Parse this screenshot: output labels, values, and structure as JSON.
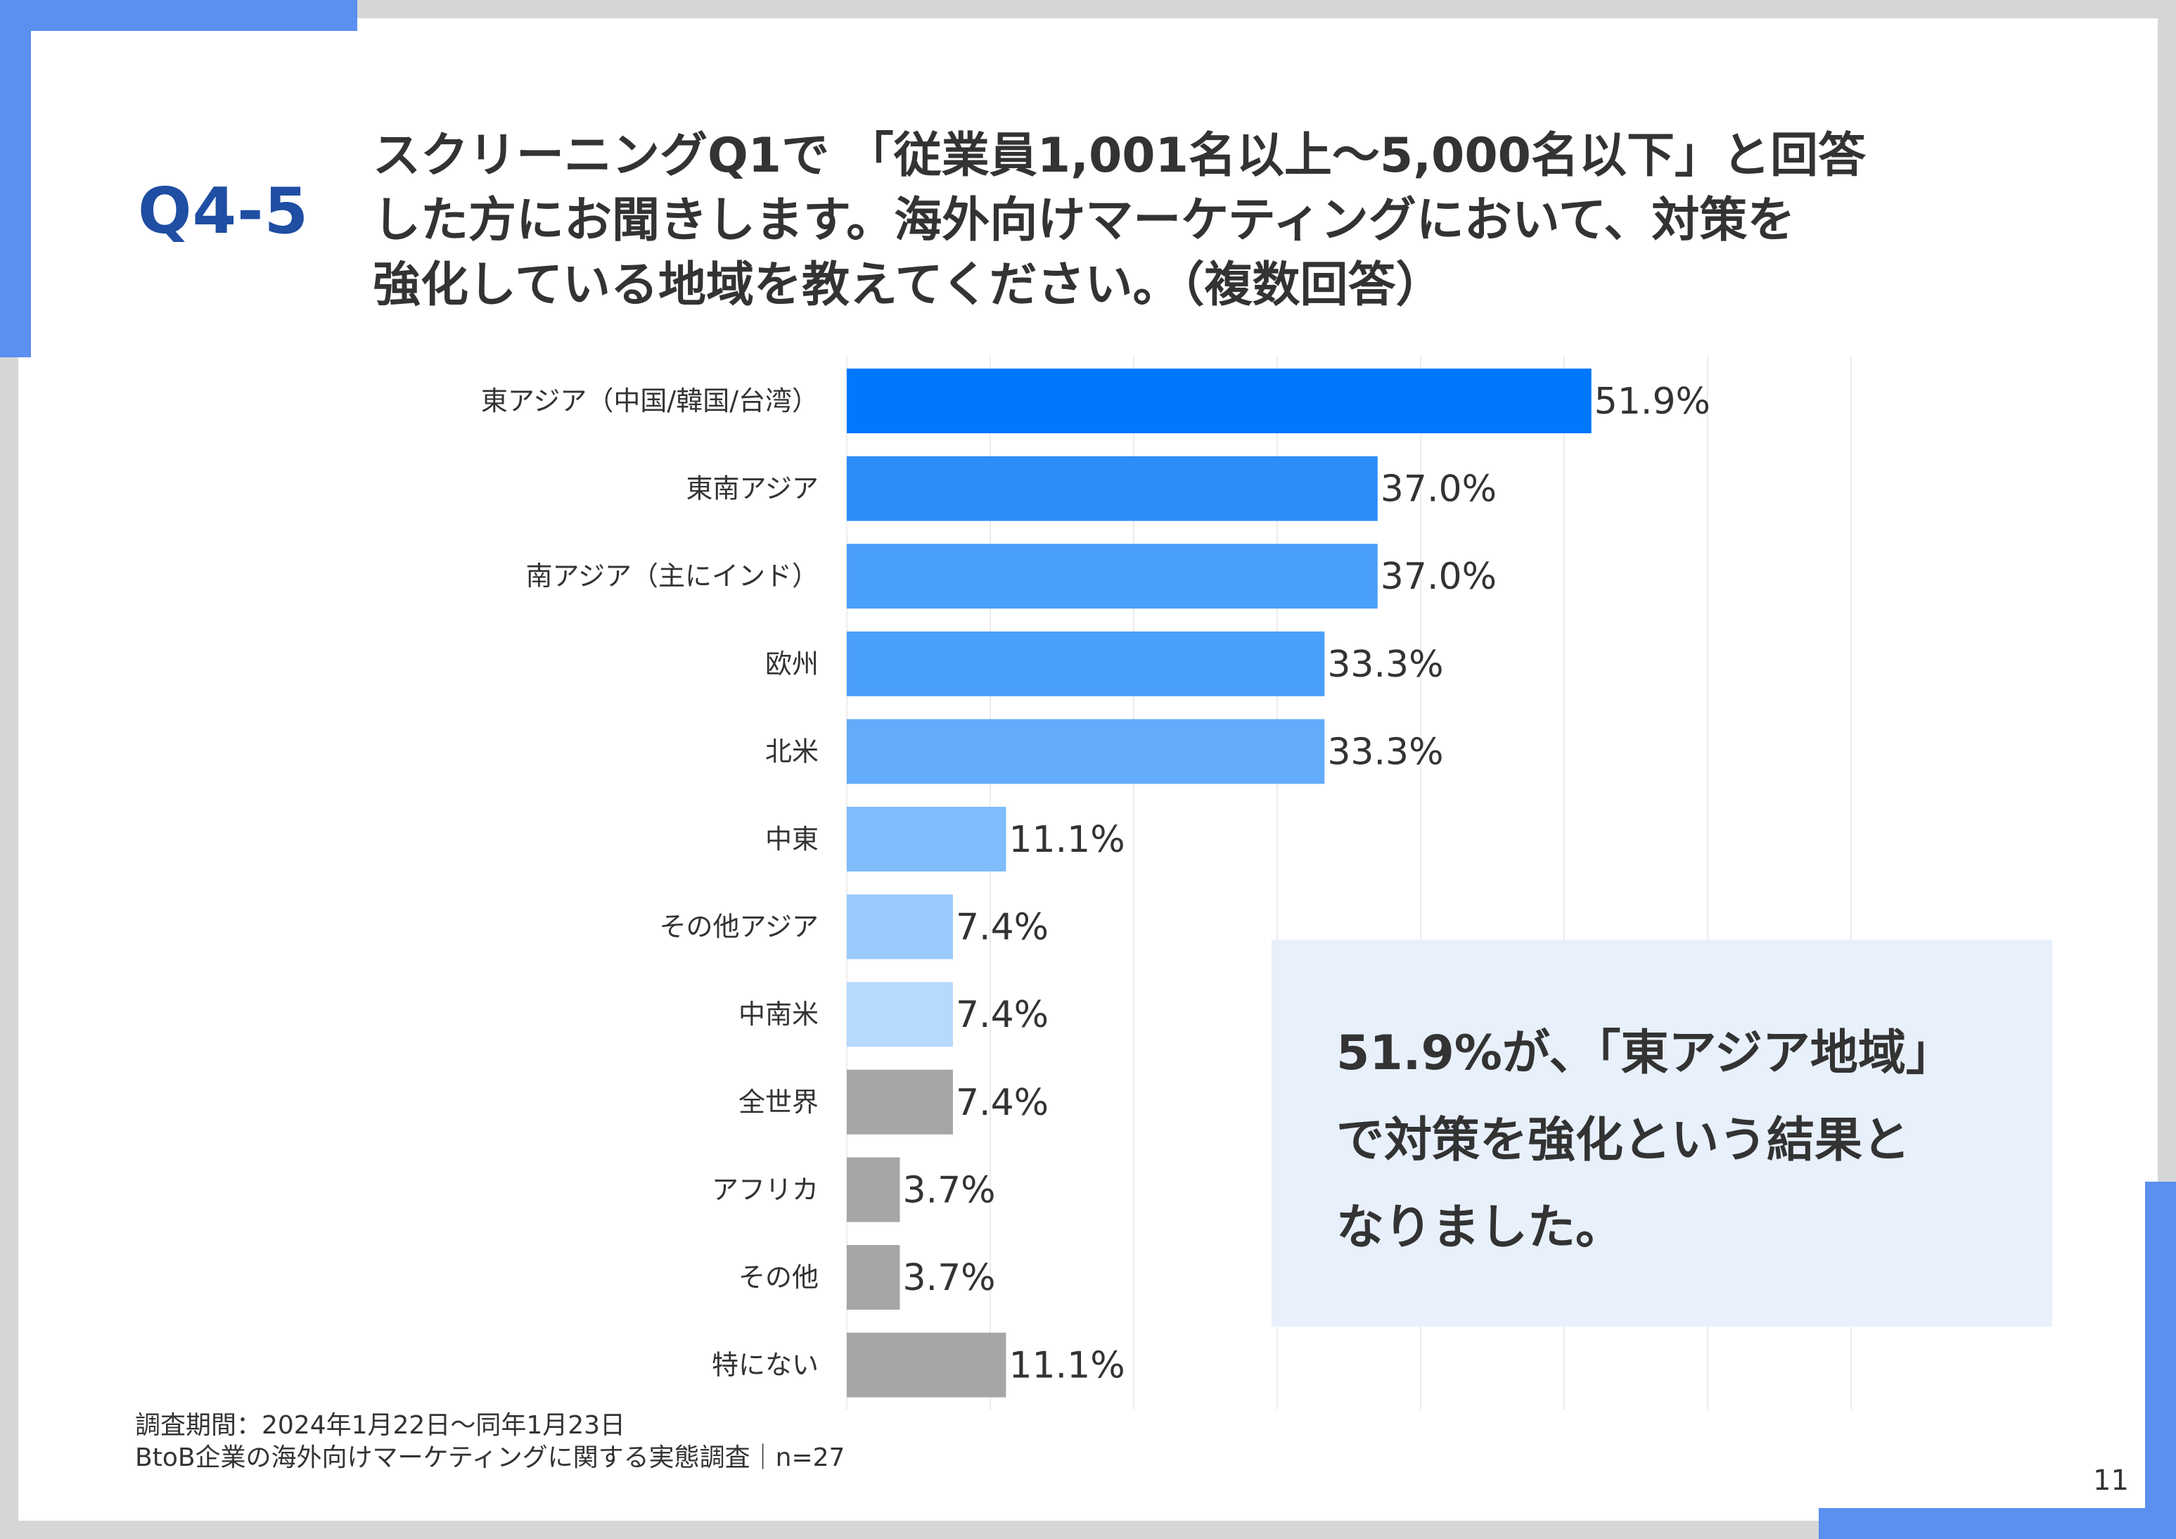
{
  "header": {
    "question_number": "Q4-5",
    "question_lines": [
      "スクリーニングQ1で 「従業員1,001名以上～5,000名以下」と回答",
      "した方にお聞きします。海外向けマーケティングにおいて、対策を",
      "強化している地域を教えてください。（複数回答）"
    ]
  },
  "colors": {
    "accent": "#5b8ff0",
    "question_number": "#1f4ea3",
    "callout_bg": "#e8f0fc",
    "gray_bar": "#a6a6a6"
  },
  "chart_data": {
    "type": "bar",
    "orientation": "horizontal",
    "grid": true,
    "xlim": [
      0,
      70
    ],
    "categories": [
      "東アジア（中国/韓国/台湾）",
      "東南アジア",
      "南アジア（主にインド）",
      "欧州",
      "北米",
      "中東",
      "その他アジア",
      "中南米",
      "全世界",
      "アフリカ",
      "その他",
      "特にない"
    ],
    "values": [
      51.9,
      37.0,
      37.0,
      33.3,
      33.3,
      11.1,
      7.4,
      7.4,
      7.4,
      3.7,
      3.7,
      11.1
    ],
    "value_labels": [
      "51.9%",
      "37.0%",
      "37.0%",
      "33.3%",
      "33.3%",
      "11.1%",
      "7.4%",
      "7.4%",
      "7.4%",
      "3.7%",
      "3.7%",
      "11.1%"
    ],
    "bar_colors": [
      "#0077ff",
      "#2b8df9",
      "#4a9ffa",
      "#4a9ffa",
      "#62acfb",
      "#7fbcfc",
      "#9bcbfd",
      "#b6d9fe",
      "#a6a6a6",
      "#a6a6a6",
      "#a6a6a6",
      "#a6a6a6"
    ]
  },
  "callout": {
    "lines": [
      "51.9%が、「東アジア地域」",
      "で対策を強化という結果と",
      "なりました。"
    ]
  },
  "footnote": {
    "period": "調査期間：2024年1月22日～同年1月23日",
    "survey": "BtoB企業の海外向けマーケティングに関する実態調査｜n=27"
  },
  "page_number": "11"
}
